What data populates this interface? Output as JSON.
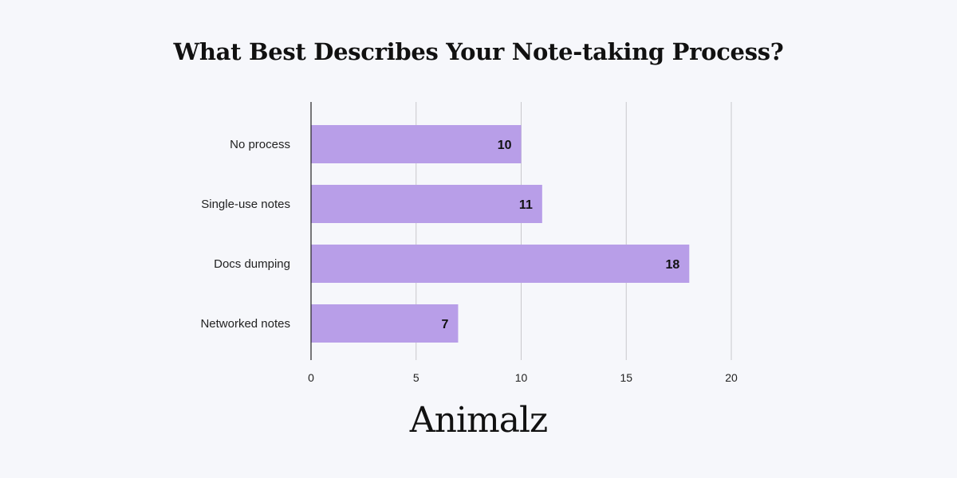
{
  "colors": {
    "background": "#f6f7fb",
    "bar": "#b89ee8",
    "grid": "#c8c8cc",
    "axis": "#222222",
    "text": "#222222"
  },
  "brand": {
    "logo_text": "Animalz"
  },
  "chart_data": {
    "type": "bar",
    "orientation": "horizontal",
    "title": "What Best Describes Your Note-taking Process?",
    "xlabel": "",
    "ylabel": "",
    "categories": [
      "No process",
      "Single-use notes",
      "Docs dumping",
      "Networked notes"
    ],
    "values": [
      10,
      11,
      18,
      7
    ],
    "xlim": [
      0,
      20
    ],
    "xticks": [
      0,
      5,
      10,
      15,
      20
    ],
    "grid": true,
    "data_labels": true,
    "legend": "none"
  }
}
